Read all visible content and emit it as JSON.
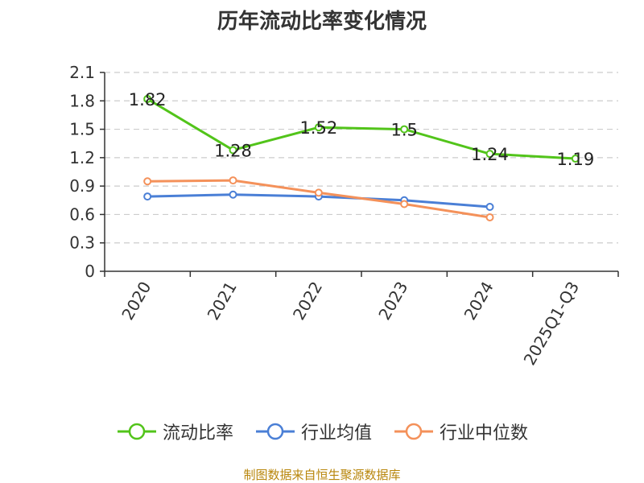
{
  "chart_data": {
    "type": "line",
    "title": "历年流动比率变化情况",
    "categories": [
      "2020",
      "2021",
      "2022",
      "2023",
      "2024",
      "2025Q1-Q3"
    ],
    "ylim": [
      0,
      2.1
    ],
    "yticks": [
      "0",
      "0.3",
      "0.6",
      "0.9",
      "1.2",
      "1.5",
      "1.8",
      "2.1"
    ],
    "grid": true,
    "legend_position": "bottom",
    "series": [
      {
        "name": "流动比率",
        "color": "#52c41a",
        "values": [
          1.82,
          1.28,
          1.52,
          1.5,
          1.24,
          1.19
        ],
        "labels": [
          "1.82",
          "1.28",
          "1.52",
          "1.5",
          "1.24",
          "1.19"
        ]
      },
      {
        "name": "行业均值",
        "color": "#4a7fd6",
        "values": [
          0.79,
          0.81,
          0.79,
          0.75,
          0.68,
          null
        ]
      },
      {
        "name": "行业中位数",
        "color": "#f4915a",
        "values": [
          0.95,
          0.96,
          0.83,
          0.71,
          0.57,
          null
        ]
      }
    ],
    "source": "制图数据来自恒生聚源数据库"
  }
}
